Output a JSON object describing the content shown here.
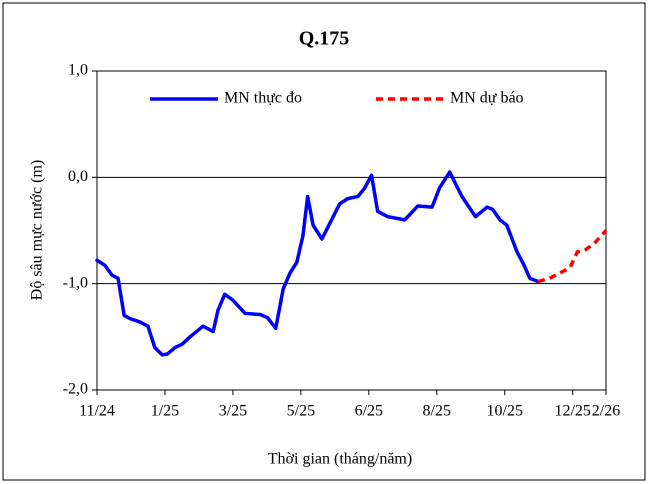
{
  "chart_data": {
    "type": "line",
    "title": "Q.175",
    "xlabel": "Thời gian (tháng/năm)",
    "ylabel": "Độ sâu mực nước (m)",
    "xlim": [
      0,
      7.49
    ],
    "ylim": [
      -2,
      1
    ],
    "xticks": [
      {
        "value": 0,
        "label": "11/24"
      },
      {
        "value": 1,
        "label": "1/25"
      },
      {
        "value": 2,
        "label": "3/25"
      },
      {
        "value": 3,
        "label": "5/25"
      },
      {
        "value": 4,
        "label": "6/25"
      },
      {
        "value": 5,
        "label": "8/25"
      },
      {
        "value": 6,
        "label": "10/25"
      },
      {
        "value": 7,
        "label": "12/25"
      },
      {
        "value": 7.49,
        "label": "2/26"
      }
    ],
    "yticks": [
      {
        "value": 1,
        "label": "1,0"
      },
      {
        "value": 0,
        "label": "0,0"
      },
      {
        "value": -1,
        "label": "-1,0"
      },
      {
        "value": -2,
        "label": "-2,0"
      }
    ],
    "grid_values": [
      0,
      -1
    ],
    "legend": "top",
    "series": [
      {
        "name": "MN thực đo",
        "color": "#0000ff",
        "dash": false,
        "x": [
          0,
          0.12,
          0.22,
          0.31,
          0.4,
          0.49,
          0.63,
          0.75,
          0.85,
          0.96,
          1.04,
          1.15,
          1.25,
          1.37,
          1.56,
          1.71,
          1.78,
          1.88,
          1.99,
          2.18,
          2.4,
          2.51,
          2.63,
          2.74,
          2.84,
          2.94,
          3.03,
          3.1,
          3.18,
          3.31,
          3.57,
          3.69,
          3.84,
          3.94,
          4.04,
          4.13,
          4.28,
          4.53,
          4.72,
          4.93,
          5.04,
          5.19,
          5.37,
          5.57,
          5.74,
          5.82,
          5.93,
          6.03,
          6.18,
          6.28,
          6.37,
          6.49
        ],
        "values": [
          -0.78,
          -0.83,
          -0.92,
          -0.95,
          -1.3,
          -1.33,
          -1.36,
          -1.4,
          -1.6,
          -1.67,
          -1.66,
          -1.6,
          -1.57,
          -1.5,
          -1.4,
          -1.45,
          -1.25,
          -1.1,
          -1.15,
          -1.28,
          -1.29,
          -1.32,
          -1.42,
          -1.05,
          -0.9,
          -0.8,
          -0.55,
          -0.18,
          -0.45,
          -0.58,
          -0.25,
          -0.2,
          -0.18,
          -0.1,
          0.02,
          -0.32,
          -0.37,
          -0.4,
          -0.27,
          -0.28,
          -0.1,
          0.05,
          -0.18,
          -0.37,
          -0.28,
          -0.3,
          -0.4,
          -0.45,
          -0.7,
          -0.82,
          -0.95,
          -0.98
        ]
      },
      {
        "name": "MN dự báo",
        "color": "#ff0000",
        "dash": true,
        "x": [
          6.49,
          6.66,
          6.81,
          6.96,
          7.07,
          7.19,
          7.32,
          7.49
        ],
        "values": [
          -0.98,
          -0.95,
          -0.9,
          -0.85,
          -0.7,
          -0.68,
          -0.62,
          -0.5
        ]
      }
    ]
  }
}
